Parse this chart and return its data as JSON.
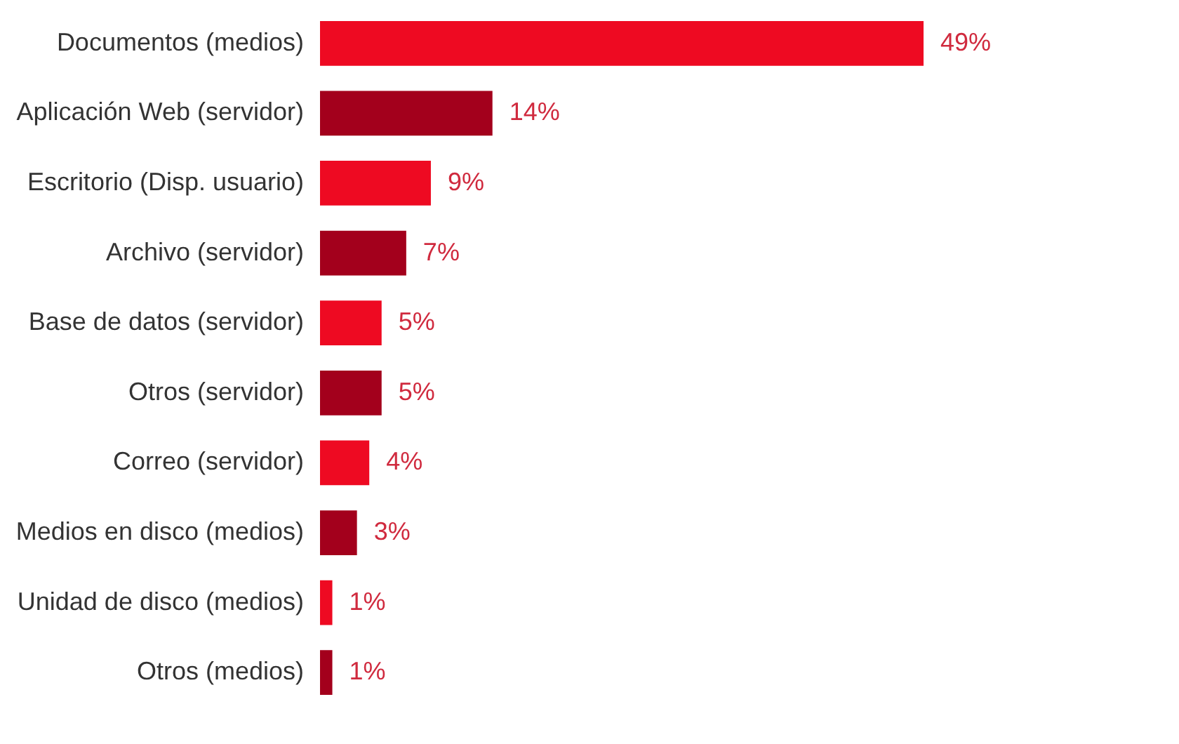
{
  "chart_data": {
    "type": "bar",
    "orientation": "horizontal",
    "categories": [
      "Documentos (medios)",
      "Aplicación Web (servidor)",
      "Escritorio (Disp. usuario)",
      "Archivo (servidor)",
      "Base de datos (servidor)",
      "Otros (servidor)",
      "Correo (servidor)",
      "Medios en disco (medios)",
      "Unidad de disco (medios)",
      "Otros (medios)"
    ],
    "values": [
      49,
      14,
      9,
      7,
      5,
      5,
      4,
      3,
      1,
      1
    ],
    "value_labels": [
      "49%",
      "14%",
      "9%",
      "7%",
      "5%",
      "5%",
      "4%",
      "3%",
      "1%",
      "1%"
    ],
    "colors": [
      "#ee0a22",
      "#a3001c",
      "#ee0a22",
      "#a3001c",
      "#ee0a22",
      "#a3001c",
      "#ee0a22",
      "#a3001c",
      "#ee0a22",
      "#a3001c"
    ]
  }
}
